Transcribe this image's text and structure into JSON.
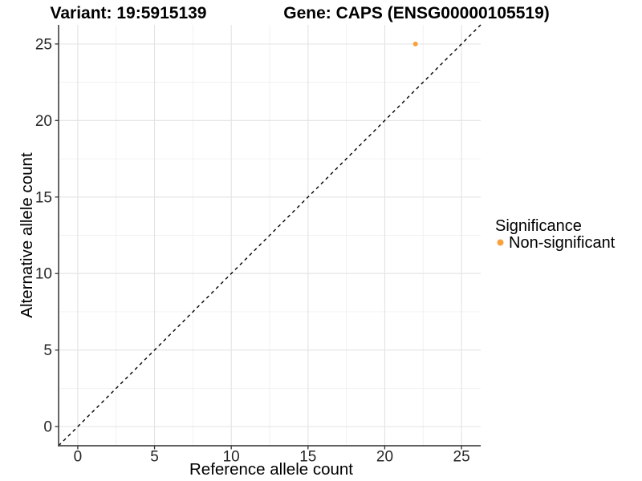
{
  "header": {
    "variant_title": "Variant: 19:5915139",
    "gene_title": "Gene: CAPS (ENSG00000105519)"
  },
  "axes": {
    "x_label": "Reference allele count",
    "y_label": "Alternative allele count"
  },
  "legend": {
    "title": "Significance",
    "items": [
      {
        "label": "Non-significant",
        "color": "#F9A13B"
      }
    ]
  },
  "chart_data": {
    "type": "scatter",
    "title": "Variant: 19:5915139    Gene: CAPS (ENSG00000105519)",
    "xlabel": "Reference allele count",
    "ylabel": "Alternative allele count",
    "xlim": [
      -1.25,
      26.25
    ],
    "ylim": [
      -1.25,
      26.25
    ],
    "x_ticks": [
      0,
      5,
      10,
      15,
      20,
      25
    ],
    "y_ticks": [
      0,
      5,
      10,
      15,
      20,
      25
    ],
    "minor_gridlines": [
      2.5,
      7.5,
      12.5,
      17.5,
      22.5
    ],
    "grid": "major+minor",
    "legend_position": "right",
    "reference_line": {
      "type": "identity",
      "slope": 1,
      "intercept": 0,
      "style": "dashed",
      "color": "#000000"
    },
    "series": [
      {
        "name": "Non-significant",
        "color": "#F9A13B",
        "points": [
          {
            "x": 22,
            "y": 25
          }
        ]
      }
    ]
  },
  "style": {
    "background": "#FFFFFF",
    "grid_major_color": "#E3E3E3",
    "grid_minor_color": "#F0F0F0",
    "axis_line_color": "#4A4A4A",
    "tick_mark_color": "#333333",
    "point_color": "#F9A13B",
    "reference_line_color": "#000000"
  }
}
